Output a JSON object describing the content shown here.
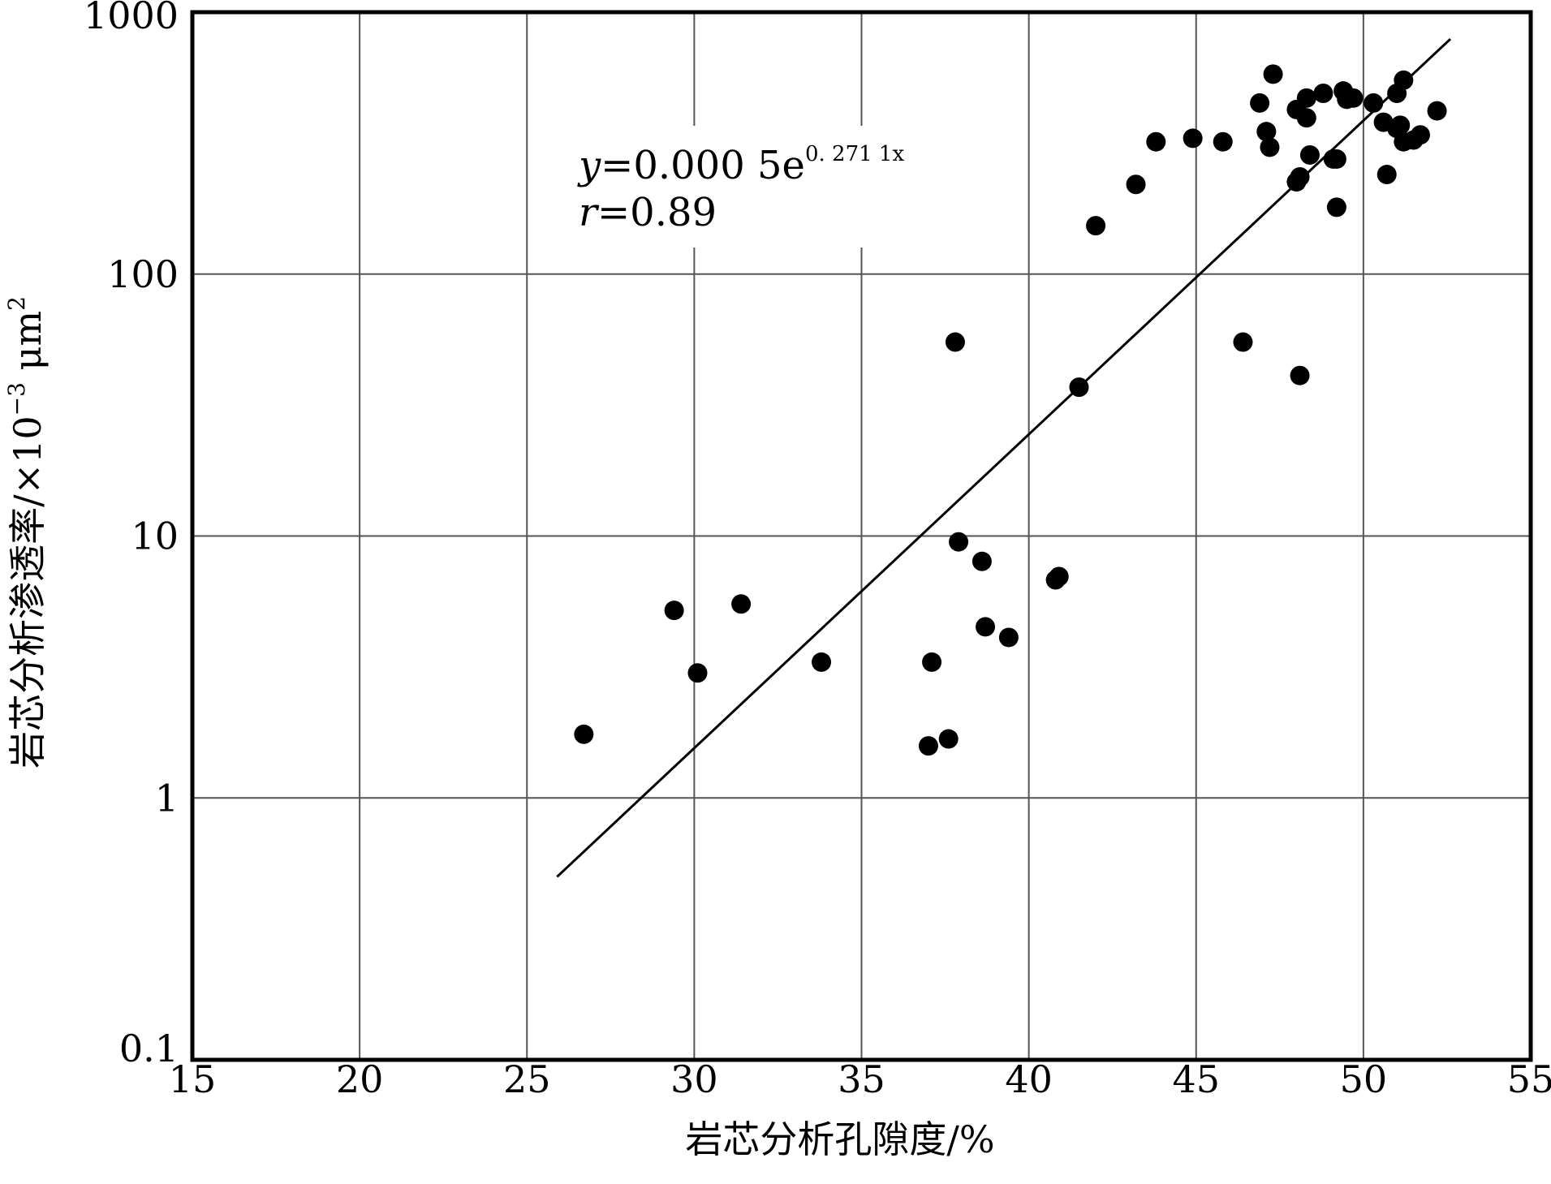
{
  "chart_data": {
    "type": "scatter",
    "xlabel": "岩芯分析孔隙度/%",
    "ylabel": "岩芯分析渗透率/×10⁻³ μm²",
    "xlim": [
      15,
      55
    ],
    "ylim": [
      0.1,
      1000
    ],
    "y_scale": "log",
    "x_ticks": [
      "15",
      "20",
      "25",
      "30",
      "35",
      "40",
      "45",
      "50",
      "55"
    ],
    "y_ticks": [
      "0.1",
      "1",
      "10",
      "100",
      "1000"
    ],
    "grid": true,
    "annotation": {
      "equation_prefix": "y=0.000 5e",
      "equation_exponent": "0. 271 1x",
      "r_text": "r=0.89"
    },
    "fit_line": {
      "x": [
        25.9,
        52.6
      ],
      "y": [
        0.5,
        790
      ]
    },
    "points": [
      [
        26.7,
        1.75
      ],
      [
        29.4,
        5.2
      ],
      [
        30.1,
        3.0
      ],
      [
        31.4,
        5.5
      ],
      [
        33.8,
        3.3
      ],
      [
        37.0,
        1.58
      ],
      [
        37.1,
        3.3
      ],
      [
        37.6,
        1.68
      ],
      [
        37.8,
        55
      ],
      [
        37.9,
        9.5
      ],
      [
        38.6,
        8.0
      ],
      [
        38.7,
        4.5
      ],
      [
        39.4,
        4.1
      ],
      [
        40.8,
        6.8
      ],
      [
        40.9,
        7.0
      ],
      [
        41.5,
        37
      ],
      [
        42.0,
        153
      ],
      [
        43.2,
        220
      ],
      [
        43.8,
        320
      ],
      [
        44.9,
        330
      ],
      [
        45.8,
        320
      ],
      [
        46.4,
        55
      ],
      [
        46.9,
        450
      ],
      [
        47.1,
        350
      ],
      [
        47.2,
        305
      ],
      [
        47.3,
        580
      ],
      [
        48.0,
        425
      ],
      [
        48.0,
        225
      ],
      [
        48.1,
        235
      ],
      [
        48.1,
        41
      ],
      [
        48.3,
        395
      ],
      [
        48.3,
        470
      ],
      [
        48.4,
        285
      ],
      [
        48.8,
        490
      ],
      [
        49.1,
        275
      ],
      [
        49.2,
        275
      ],
      [
        49.2,
        180
      ],
      [
        49.4,
        500
      ],
      [
        49.5,
        465
      ],
      [
        49.7,
        470
      ],
      [
        50.3,
        450
      ],
      [
        50.6,
        380
      ],
      [
        50.7,
        240
      ],
      [
        51.0,
        360
      ],
      [
        51.0,
        490
      ],
      [
        51.1,
        370
      ],
      [
        51.2,
        550
      ],
      [
        51.2,
        320
      ],
      [
        51.5,
        325
      ],
      [
        51.7,
        340
      ],
      [
        52.2,
        420
      ]
    ]
  }
}
